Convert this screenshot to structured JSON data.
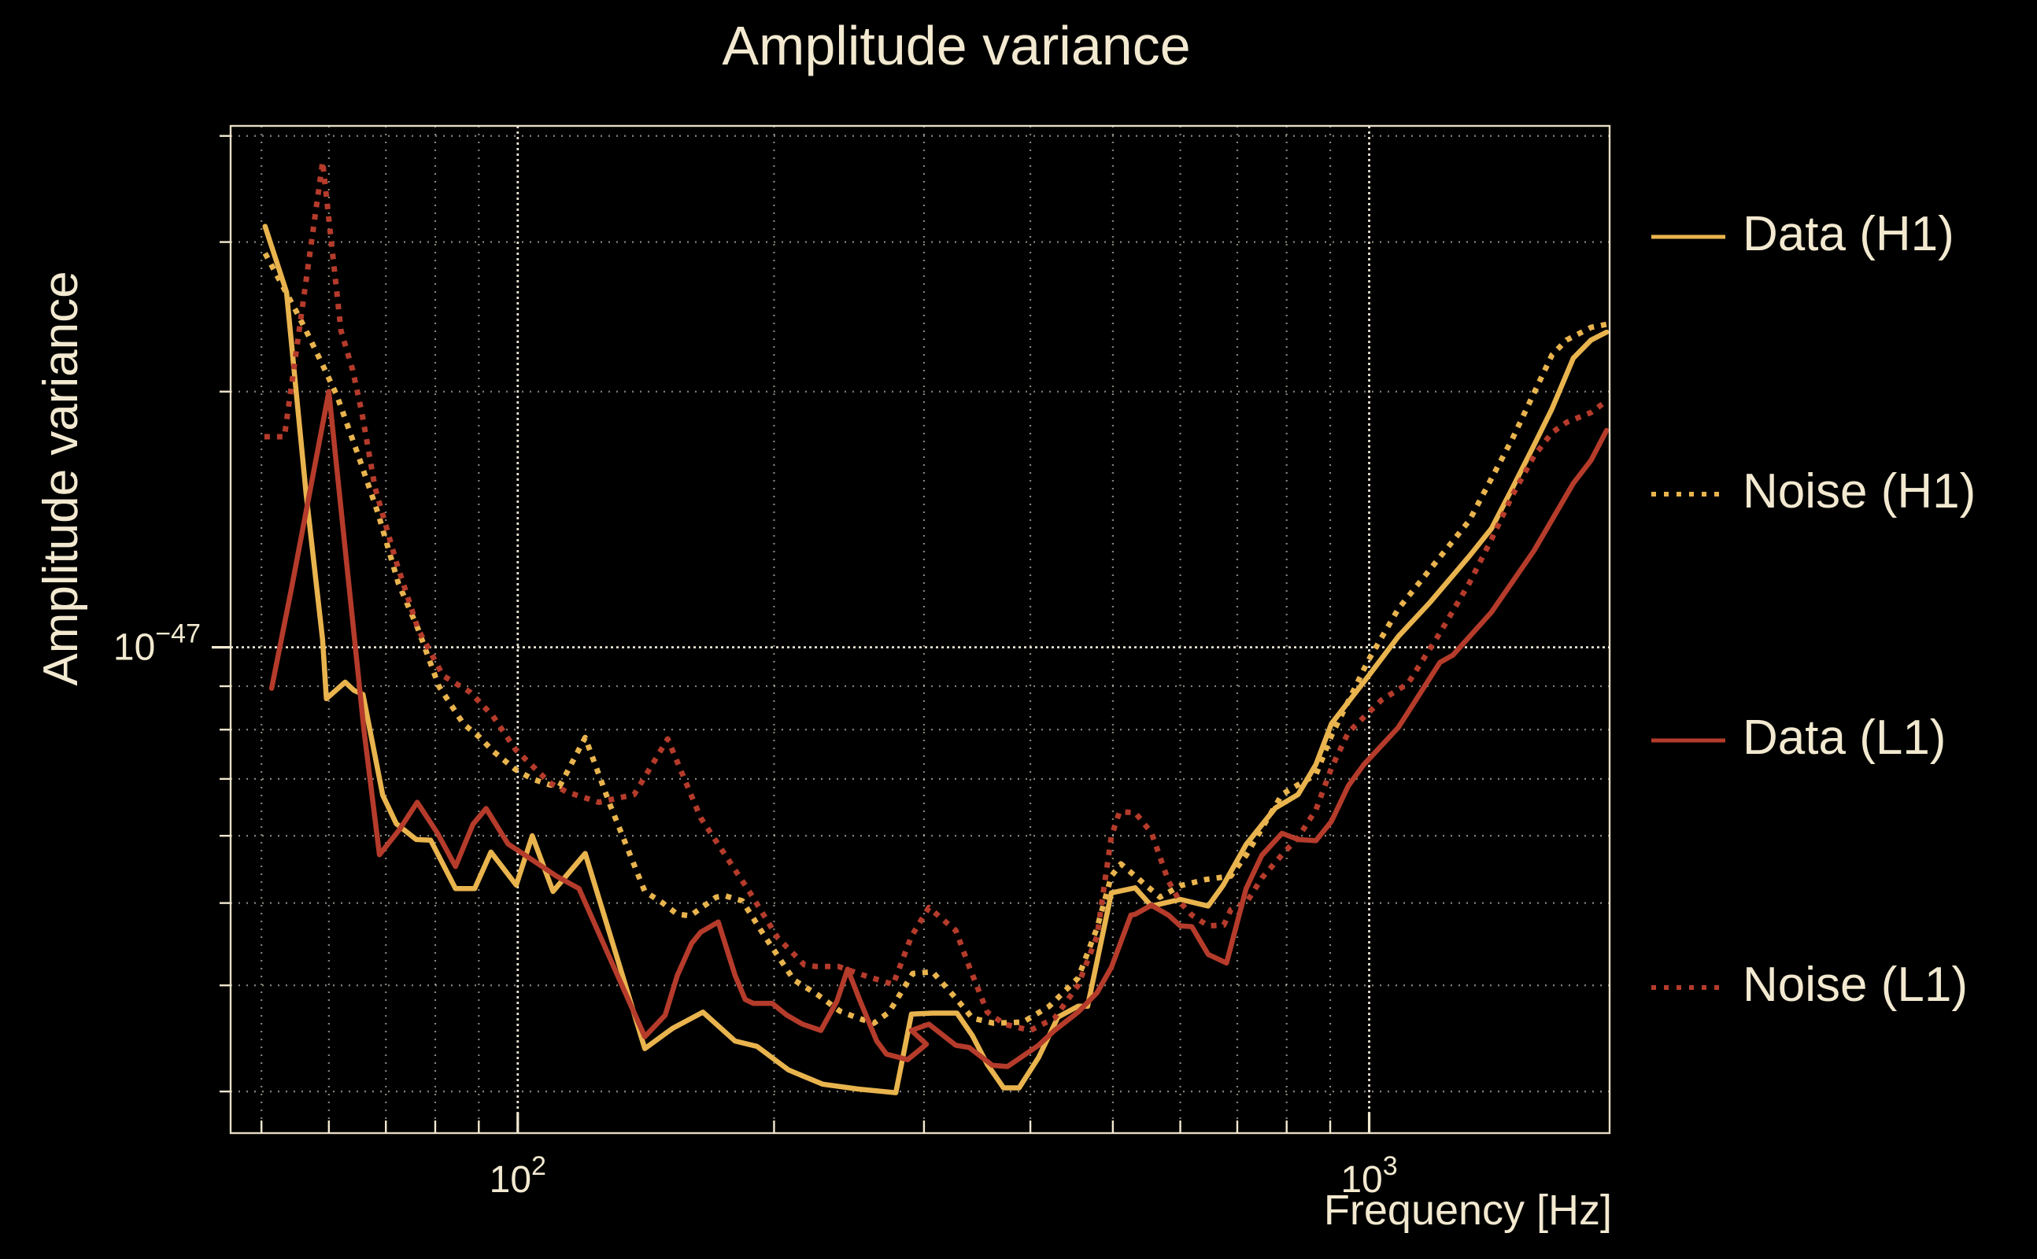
{
  "chart_data": {
    "type": "line",
    "title": "Amplitude variance",
    "xlabel": "Frequency [Hz]",
    "ylabel": "Amplitude variance",
    "x_scale": "log",
    "y_scale": "log",
    "grid": true,
    "legend_position": "right-outside",
    "background_color": "#000000",
    "text_color": "#f2e9d0",
    "grid_color": "#f5efdd",
    "xlim_hz": [
      46,
      1916
    ],
    "ylim_value_1e-48": [
      2.68,
      41.1
    ],
    "value_unit": "1e-48 (amplitude variance)",
    "x_major_ticks": [
      {
        "value": 100,
        "label_base": "10",
        "label_exp": "2"
      },
      {
        "value": 1000,
        "label_base": "10",
        "label_exp": "3"
      }
    ],
    "y_major_ticks": [
      {
        "value_1e-48": 10,
        "label_base": "10",
        "label_exp": "-47"
      }
    ],
    "x_minor_gridlines_hz": [
      50,
      60,
      70,
      80,
      90,
      200,
      300,
      400,
      500,
      600,
      700,
      800,
      900
    ],
    "x_major_gridlines_hz": [
      100,
      1000
    ],
    "y_minor_gridlines_1e-48": [
      3,
      4,
      5,
      6,
      7,
      8,
      9,
      20,
      30,
      40
    ],
    "y_major_gridlines_1e-48": [
      10
    ],
    "series": [
      {
        "name": "Data (H1)",
        "color": "#e9b44e",
        "line_style": "solid",
        "points": [
          [
            50.5,
            31.3
          ],
          [
            53.5,
            26.2
          ],
          [
            56.4,
            15.2
          ],
          [
            59,
            10.2
          ],
          [
            59.6,
            8.7
          ],
          [
            62.7,
            9.1
          ],
          [
            64.2,
            8.9
          ],
          [
            65.8,
            8.8
          ],
          [
            69.4,
            6.7
          ],
          [
            72,
            6.2
          ],
          [
            76,
            5.94
          ],
          [
            79,
            5.93
          ],
          [
            84.5,
            5.2
          ],
          [
            89,
            5.2
          ],
          [
            93,
            5.74
          ],
          [
            99.6,
            5.25
          ],
          [
            104,
            6.0
          ],
          [
            110,
            5.16
          ],
          [
            120,
            5.72
          ],
          [
            130,
            4.4
          ],
          [
            141,
            3.37
          ],
          [
            152,
            3.56
          ],
          [
            165,
            3.72
          ],
          [
            180,
            3.44
          ],
          [
            191,
            3.39
          ],
          [
            208,
            3.18
          ],
          [
            228,
            3.06
          ],
          [
            251,
            3.02
          ],
          [
            278,
            2.99
          ],
          [
            290,
            3.7
          ],
          [
            307,
            3.71
          ],
          [
            328,
            3.71
          ],
          [
            342,
            3.49
          ],
          [
            356,
            3.23
          ],
          [
            372,
            3.03
          ],
          [
            388,
            3.03
          ],
          [
            409,
            3.29
          ],
          [
            431,
            3.67
          ],
          [
            455,
            3.78
          ],
          [
            467,
            3.78
          ],
          [
            498,
            5.14
          ],
          [
            531,
            5.21
          ],
          [
            555,
            4.96
          ],
          [
            600,
            5.05
          ],
          [
            647,
            4.96
          ],
          [
            674,
            5.25
          ],
          [
            717,
            5.86
          ],
          [
            776,
            6.47
          ],
          [
            825,
            6.71
          ],
          [
            866,
            7.28
          ],
          [
            903,
            8.13
          ],
          [
            997,
            9.24
          ],
          [
            1082,
            10.3
          ],
          [
            1179,
            11.3
          ],
          [
            1311,
            12.8
          ],
          [
            1392,
            13.8
          ],
          [
            1473,
            15.4
          ],
          [
            1562,
            17.3
          ],
          [
            1640,
            19.1
          ],
          [
            1737,
            21.9
          ],
          [
            1822,
            23.0
          ],
          [
            1900,
            23.5
          ]
        ]
      },
      {
        "name": "Noise (H1)",
        "color": "#e9b44e",
        "line_style": "dotted",
        "points": [
          [
            50.5,
            29.1
          ],
          [
            55,
            24.8
          ],
          [
            56.4,
            23.6
          ],
          [
            59,
            21.5
          ],
          [
            61.3,
            19.8
          ],
          [
            65,
            16.8
          ],
          [
            68.5,
            14.4
          ],
          [
            72.4,
            11.9
          ],
          [
            76.4,
            10.5
          ],
          [
            80.8,
            9.0
          ],
          [
            86.3,
            8.13
          ],
          [
            90.3,
            7.83
          ],
          [
            93.5,
            7.55
          ],
          [
            99.4,
            7.18
          ],
          [
            104,
            7.0
          ],
          [
            109,
            6.89
          ],
          [
            112,
            6.86
          ],
          [
            120,
            7.83
          ],
          [
            128,
            6.57
          ],
          [
            141,
            5.16
          ],
          [
            148,
            5.0
          ],
          [
            154,
            4.85
          ],
          [
            159.5,
            4.83
          ],
          [
            171,
            5.08
          ],
          [
            175,
            5.1
          ],
          [
            183.5,
            5.03
          ],
          [
            195,
            4.57
          ],
          [
            211,
            4.06
          ],
          [
            225,
            3.9
          ],
          [
            239,
            3.73
          ],
          [
            251,
            3.66
          ],
          [
            262,
            3.61
          ],
          [
            273,
            3.72
          ],
          [
            291,
            4.13
          ],
          [
            307,
            4.15
          ],
          [
            328,
            3.85
          ],
          [
            342,
            3.66
          ],
          [
            362,
            3.61
          ],
          [
            392,
            3.62
          ],
          [
            421,
            3.78
          ],
          [
            455,
            4.08
          ],
          [
            479,
            4.67
          ],
          [
            498,
            5.38
          ],
          [
            511,
            5.56
          ],
          [
            531,
            5.38
          ],
          [
            568,
            5.08
          ],
          [
            600,
            5.24
          ],
          [
            643,
            5.33
          ],
          [
            688,
            5.38
          ],
          [
            717,
            5.69
          ],
          [
            748,
            6.12
          ],
          [
            790,
            6.71
          ],
          [
            825,
            6.89
          ],
          [
            866,
            7.08
          ],
          [
            903,
            7.87
          ],
          [
            997,
            9.64
          ],
          [
            1082,
            11.1
          ],
          [
            1311,
            14.1
          ],
          [
            1473,
            17.6
          ],
          [
            1640,
            22.1
          ],
          [
            1705,
            23.0
          ],
          [
            1822,
            23.8
          ],
          [
            1900,
            24.0
          ]
        ]
      },
      {
        "name": "Data (L1)",
        "color": "#b53b2b",
        "line_style": "solid",
        "points": [
          [
            51.4,
            8.95
          ],
          [
            54.2,
            11.7
          ],
          [
            60,
            20.0
          ],
          [
            66,
            7.96
          ],
          [
            68.8,
            5.7
          ],
          [
            72.6,
            6.1
          ],
          [
            76.2,
            6.57
          ],
          [
            80.5,
            6.04
          ],
          [
            84.5,
            5.52
          ],
          [
            88.6,
            6.19
          ],
          [
            91.8,
            6.46
          ],
          [
            97.4,
            5.87
          ],
          [
            104,
            5.62
          ],
          [
            111,
            5.38
          ],
          [
            118,
            5.2
          ],
          [
            141,
            3.48
          ],
          [
            149,
            3.69
          ],
          [
            154,
            4.11
          ],
          [
            160,
            4.48
          ],
          [
            164,
            4.62
          ],
          [
            172,
            4.75
          ],
          [
            180,
            4.11
          ],
          [
            185,
            3.85
          ],
          [
            189,
            3.81
          ],
          [
            199,
            3.81
          ],
          [
            207,
            3.69
          ],
          [
            216,
            3.6
          ],
          [
            227,
            3.54
          ],
          [
            237,
            3.83
          ],
          [
            244,
            4.18
          ],
          [
            252,
            3.85
          ],
          [
            264,
            3.44
          ],
          [
            271,
            3.32
          ],
          [
            287,
            3.27
          ],
          [
            302,
            3.41
          ],
          [
            290,
            3.54
          ],
          [
            304,
            3.6
          ],
          [
            327,
            3.4
          ],
          [
            339,
            3.38
          ],
          [
            361,
            3.22
          ],
          [
            376,
            3.21
          ],
          [
            409,
            3.4
          ],
          [
            427,
            3.54
          ],
          [
            455,
            3.72
          ],
          [
            479,
            3.92
          ],
          [
            498,
            4.2
          ],
          [
            525,
            4.84
          ],
          [
            531,
            4.85
          ],
          [
            555,
            4.97
          ],
          [
            581,
            4.84
          ],
          [
            600,
            4.7
          ],
          [
            619,
            4.69
          ],
          [
            647,
            4.35
          ],
          [
            680,
            4.25
          ],
          [
            717,
            5.2
          ],
          [
            748,
            5.69
          ],
          [
            790,
            6.04
          ],
          [
            825,
            5.94
          ],
          [
            866,
            5.92
          ],
          [
            903,
            6.24
          ],
          [
            945,
            6.87
          ],
          [
            986,
            7.28
          ],
          [
            1082,
            8.05
          ],
          [
            1211,
            9.6
          ],
          [
            1254,
            9.79
          ],
          [
            1392,
            11.0
          ],
          [
            1562,
            13.0
          ],
          [
            1737,
            15.6
          ],
          [
            1822,
            16.6
          ],
          [
            1900,
            18.0
          ]
        ]
      },
      {
        "name": "Noise (L1)",
        "color": "#b53b2b",
        "line_style": "dotted",
        "points": [
          [
            50.4,
            17.7
          ],
          [
            53.2,
            17.7
          ],
          [
            59,
            37.3
          ],
          [
            62,
            23.6
          ],
          [
            64,
            21.2
          ],
          [
            65.6,
            18.9
          ],
          [
            68,
            15.4
          ],
          [
            72,
            12.6
          ],
          [
            76.4,
            10.5
          ],
          [
            81.7,
            9.26
          ],
          [
            88,
            8.85
          ],
          [
            93.5,
            8.3
          ],
          [
            99.4,
            7.58
          ],
          [
            109,
            6.93
          ],
          [
            114,
            6.76
          ],
          [
            124.5,
            6.57
          ],
          [
            137,
            6.71
          ],
          [
            150,
            7.8
          ],
          [
            164,
            6.3
          ],
          [
            187,
            5.16
          ],
          [
            202,
            4.55
          ],
          [
            217,
            4.23
          ],
          [
            224,
            4.21
          ],
          [
            238,
            4.21
          ],
          [
            255,
            4.11
          ],
          [
            276,
            4.01
          ],
          [
            290,
            4.57
          ],
          [
            304,
            4.94
          ],
          [
            327,
            4.64
          ],
          [
            339,
            4.21
          ],
          [
            356,
            3.72
          ],
          [
            373,
            3.6
          ],
          [
            400,
            3.54
          ],
          [
            427,
            3.66
          ],
          [
            455,
            4.0
          ],
          [
            479,
            4.57
          ],
          [
            498,
            5.99
          ],
          [
            509,
            6.4
          ],
          [
            531,
            6.39
          ],
          [
            555,
            6.05
          ],
          [
            581,
            5.31
          ],
          [
            600,
            5.01
          ],
          [
            619,
            4.84
          ],
          [
            647,
            4.7
          ],
          [
            675,
            4.71
          ],
          [
            688,
            4.91
          ],
          [
            717,
            5.0
          ],
          [
            748,
            5.35
          ],
          [
            790,
            5.7
          ],
          [
            825,
            5.97
          ],
          [
            866,
            6.44
          ],
          [
            903,
            7.21
          ],
          [
            945,
            7.94
          ],
          [
            1034,
            8.67
          ],
          [
            1110,
            9.06
          ],
          [
            1211,
            10.4
          ],
          [
            1311,
            11.9
          ],
          [
            1392,
            13.4
          ],
          [
            1473,
            15.1
          ],
          [
            1562,
            16.8
          ],
          [
            1640,
            17.9
          ],
          [
            1705,
            18.4
          ],
          [
            1822,
            18.9
          ],
          [
            1900,
            19.5
          ]
        ]
      }
    ]
  }
}
